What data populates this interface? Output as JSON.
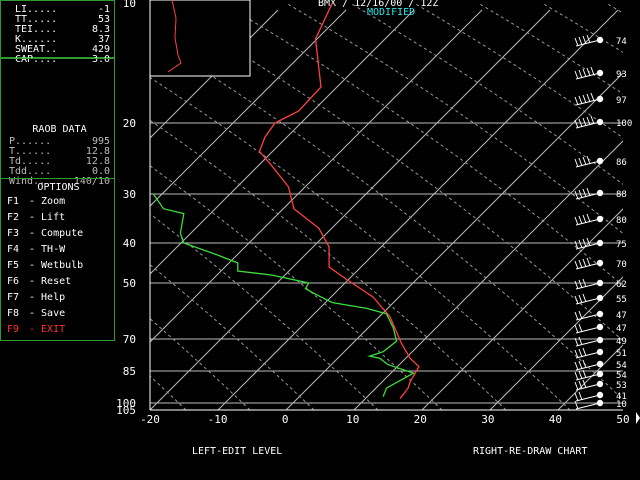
{
  "header": {
    "station": "BMX / 12/16/00 / 12Z",
    "status": "MODIFIED"
  },
  "indices": [
    {
      "label": "LI.....",
      "value": "-1"
    },
    {
      "label": "TT.....",
      "value": "53"
    },
    {
      "label": "TEI....",
      "value": "8.3"
    },
    {
      "label": "K......",
      "value": "37"
    },
    {
      "label": "SWEAT..",
      "value": "429"
    },
    {
      "label": "CAP....",
      "value": "3.0"
    }
  ],
  "raob": {
    "title": "RAOB DATA",
    "rows": [
      {
        "label": "P......",
        "value": "995"
      },
      {
        "label": "T......",
        "value": "12.8"
      },
      {
        "label": "Td.....",
        "value": "12.8"
      },
      {
        "label": "Tdd....",
        "value": "0.0"
      },
      {
        "label": "Wind..",
        "value": "140/10"
      }
    ]
  },
  "options": {
    "title": "OPTIONS",
    "items": [
      {
        "key": "F1",
        "label": "- Zoom"
      },
      {
        "key": "F2",
        "label": "- Lift"
      },
      {
        "key": "F3",
        "label": "- Compute"
      },
      {
        "key": "F4",
        "label": "- TH-W"
      },
      {
        "key": "F5",
        "label": "- Wetbulb"
      },
      {
        "key": "F6",
        "label": "- Reset"
      },
      {
        "key": "F7",
        "label": "- Help"
      },
      {
        "key": "F8",
        "label": "- Save"
      },
      {
        "key": "F9",
        "label": "- EXIT"
      }
    ]
  },
  "footer": {
    "left_key": "LEFT",
    "left_text": "-EDIT LEVEL",
    "right_key": "RIGHT",
    "right_text": "-RE-DRAW CHART"
  },
  "colors": {
    "panel_border": "#2f9a2f",
    "temperature": "#ff4040",
    "dewpoint": "#3cdc3c",
    "modified": "#2ee6e6",
    "exit": "#ff3030"
  },
  "chart_data": {
    "type": "line",
    "x_ticks": [
      "-20",
      "-10",
      "0",
      "10",
      "20",
      "30",
      "40",
      "50"
    ],
    "xlim": [
      -20,
      50
    ],
    "y_ticks": [
      "10",
      "20",
      "30",
      "40",
      "50",
      "70",
      "85",
      "100",
      "105"
    ],
    "series": [
      {
        "color": "#ff4040",
        "points": [
          [
            7,
            10
          ],
          [
            4.5,
            13
          ],
          [
            5.3,
            17
          ],
          [
            2,
            19
          ],
          [
            -1.5,
            20
          ],
          [
            -3,
            22
          ],
          [
            -3.8,
            24
          ],
          [
            -2,
            26
          ],
          [
            0.5,
            29
          ],
          [
            1.3,
            33
          ],
          [
            5,
            37
          ],
          [
            6.5,
            41
          ],
          [
            6.5,
            46
          ],
          [
            9,
            49
          ],
          [
            13,
            55
          ],
          [
            15.5,
            62
          ],
          [
            17.2,
            72
          ],
          [
            18.5,
            79
          ],
          [
            19.8,
            83
          ],
          [
            18.5,
            90
          ],
          [
            18.2,
            93
          ],
          [
            17,
            98
          ]
        ]
      },
      {
        "color": "#3cdc3c",
        "points": [
          [
            -19.5,
            30
          ],
          [
            -18,
            33
          ],
          [
            -15,
            34
          ],
          [
            -15.5,
            38
          ],
          [
            -15,
            40
          ],
          [
            -10,
            43
          ],
          [
            -7,
            45
          ],
          [
            -7,
            47
          ],
          [
            -2,
            48
          ],
          [
            3.5,
            50
          ],
          [
            3,
            52
          ],
          [
            4.5,
            54
          ],
          [
            7,
            57
          ],
          [
            12,
            59
          ],
          [
            15,
            61
          ],
          [
            16,
            66
          ],
          [
            16.5,
            71
          ],
          [
            14.5,
            76
          ],
          [
            12.5,
            78
          ],
          [
            14,
            79
          ],
          [
            15.2,
            82
          ],
          [
            19,
            86
          ],
          [
            15,
            93
          ],
          [
            14.5,
            97
          ]
        ]
      }
    ],
    "wind_speeds": [
      "74",
      "93",
      "97",
      "100",
      "86",
      "88",
      "80",
      "75",
      "70",
      "62",
      "55",
      "47",
      "47",
      "49",
      "51",
      "54",
      "54",
      "53",
      "41",
      "10"
    ]
  }
}
